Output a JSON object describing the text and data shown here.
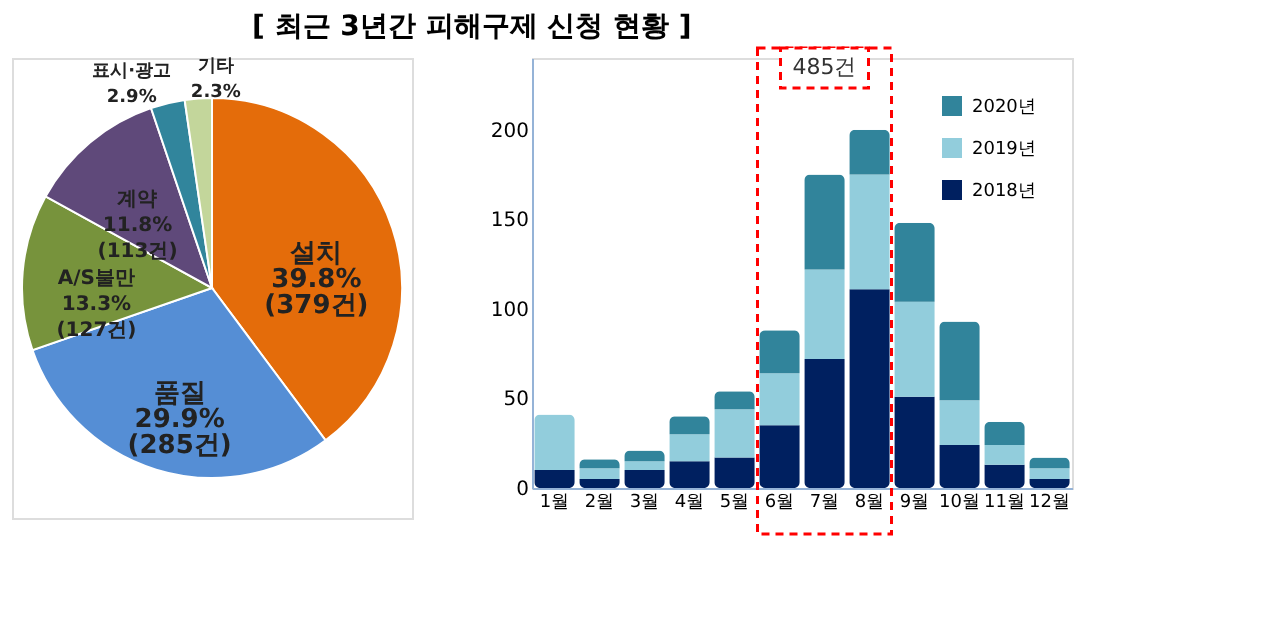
{
  "chart_data": [
    {
      "type": "pie",
      "title": "[ 최근 3년간 피해구제 신청 현황 ]",
      "categories": [
        "설치",
        "품질",
        "A/S불만",
        "계약",
        "표시·광고",
        "기타"
      ],
      "values": [
        39.8,
        29.9,
        13.3,
        11.8,
        2.9,
        2.3
      ],
      "value_labels": [
        "39.8%\n(379건)",
        "29.9%\n(285건)",
        "13.3%\n(127건)",
        "11.8%\n(113건)",
        "2.9%",
        "2.3%"
      ],
      "colors": [
        "#e46c0a",
        "#558ed5",
        "#77933c",
        "#5f497a",
        "#31859c",
        "#c3d69b"
      ]
    },
    {
      "type": "bar",
      "stacked": true,
      "categories": [
        "1월",
        "2월",
        "3월",
        "4월",
        "5월",
        "6월",
        "7월",
        "8월",
        "9월",
        "10월",
        "11월",
        "12월"
      ],
      "series": [
        {
          "name": "2018년",
          "color": "#002060",
          "values": [
            10,
            5,
            10,
            15,
            17,
            35,
            72,
            111,
            51,
            24,
            13,
            5
          ]
        },
        {
          "name": "2019년",
          "color": "#92cddc",
          "values": [
            31,
            6,
            5,
            15,
            27,
            29,
            50,
            64,
            53,
            25,
            11,
            6
          ]
        },
        {
          "name": "2020년",
          "color": "#31849b",
          "values": [
            0,
            5,
            6,
            10,
            10,
            24,
            53,
            25,
            44,
            44,
            13,
            6
          ]
        }
      ],
      "ylim": [
        0,
        240
      ],
      "yticks": [
        0,
        50,
        100,
        150,
        200
      ],
      "grid": false,
      "legend": "top right",
      "bands": [
        {
          "axis": "x",
          "from": "6월",
          "to": "8월",
          "label": "485건",
          "color": "#ff0000"
        }
      ]
    }
  ]
}
